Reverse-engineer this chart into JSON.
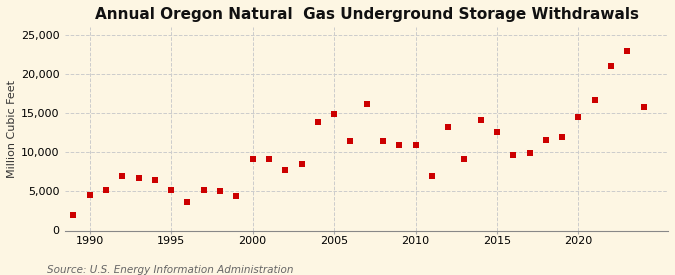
{
  "title": "Annual Oregon Natural  Gas Underground Storage Withdrawals",
  "ylabel": "Million Cubic Feet",
  "source": "Source: U.S. Energy Information Administration",
  "background_color": "#fdf6e3",
  "plot_bg_color": "#fdf6e3",
  "marker_color": "#cc0000",
  "years": [
    1989,
    1990,
    1991,
    1992,
    1993,
    1994,
    1995,
    1996,
    1997,
    1998,
    1999,
    2000,
    2001,
    2002,
    2003,
    2004,
    2005,
    2006,
    2007,
    2008,
    2009,
    2010,
    2011,
    2012,
    2013,
    2014,
    2015,
    2016,
    2017,
    2018,
    2019,
    2020,
    2021,
    2022,
    2023,
    2024
  ],
  "values": [
    2000,
    4600,
    5200,
    7000,
    6700,
    6400,
    5200,
    3600,
    5200,
    5100,
    4400,
    9200,
    9200,
    7700,
    8500,
    13900,
    14900,
    11500,
    16200,
    11500,
    11000,
    11000,
    7000,
    13200,
    9200,
    14100,
    12600,
    9700,
    9900,
    11600,
    11900,
    14500,
    16700,
    21000,
    23000,
    15800
  ],
  "xlim": [
    1988.5,
    2025.5
  ],
  "ylim": [
    0,
    26000
  ],
  "yticks": [
    0,
    5000,
    10000,
    15000,
    20000,
    25000
  ],
  "xticks": [
    1990,
    1995,
    2000,
    2005,
    2010,
    2015,
    2020
  ],
  "title_fontsize": 11,
  "label_fontsize": 8,
  "tick_fontsize": 8,
  "source_fontsize": 7.5
}
